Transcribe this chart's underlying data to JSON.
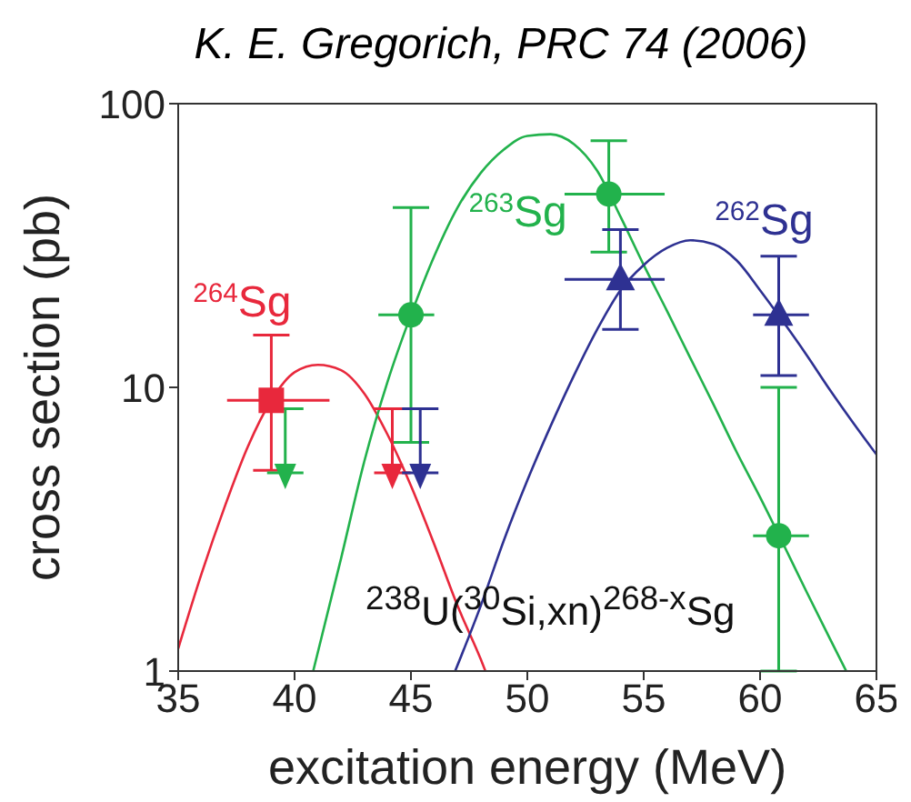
{
  "chart_data": {
    "type": "scatter",
    "title": "K. E. Gregorich, PRC 74 (2006)",
    "xlabel": "excitation energy (MeV)",
    "ylabel": "cross section (pb)",
    "xlim": [
      35,
      65
    ],
    "xticks": [
      35,
      40,
      45,
      50,
      55,
      60,
      65
    ],
    "ylim": [
      1,
      100
    ],
    "yticks": [
      1,
      10,
      100
    ],
    "log": "y",
    "grid": false,
    "legend": false,
    "series": [
      {
        "name": "$^{264}$Sg",
        "marker": "square",
        "color": "#e8283c",
        "x": [
          39
        ],
        "values": [
          9.0
        ],
        "errors": [
          [
            5.1,
            15.3
          ]
        ],
        "xerrors": [
          [
            37.1,
            41.5
          ]
        ]
      },
      {
        "type": "line",
        "marker": "none",
        "color": "#e8283c",
        "x": [
          35,
          36,
          37,
          38,
          39,
          40,
          41,
          42,
          43,
          44,
          45,
          46,
          47,
          48,
          48.2
        ],
        "values": [
          1.2,
          2.2,
          3.8,
          6.2,
          9.0,
          11.3,
          12,
          11.5,
          9.5,
          6.8,
          4.5,
          2.8,
          1.7,
          1.1,
          1
        ]
      },
      {
        "name": "$^{263}$Sg",
        "marker": "circle",
        "color": "#22b24c",
        "x": [
          45,
          53.5,
          60.8
        ],
        "values": [
          18,
          48,
          3
        ],
        "errors": [
          [
            6.4,
            43
          ],
          [
            30,
            74
          ],
          [
            1,
            10
          ]
        ],
        "xerrors": [
          [
            43.6,
            46.0
          ],
          [
            51.6,
            55.9
          ],
          [
            59.7,
            62.1
          ]
        ]
      },
      {
        "type": "line",
        "marker": "none",
        "color": "#22b24c",
        "x": [
          40.8,
          42,
          43,
          44,
          45,
          46,
          47,
          48,
          49,
          50,
          51,
          52,
          53,
          54,
          55,
          56,
          57,
          58,
          59,
          60,
          61,
          62,
          63,
          63.7
        ],
        "values": [
          1,
          2.5,
          5.5,
          10.5,
          18,
          29,
          43,
          57,
          69,
          77,
          78,
          72,
          58,
          40,
          27,
          18.6,
          12.7,
          8.7,
          5.9,
          4.1,
          2.8,
          1.9,
          1.3,
          1
        ]
      },
      {
        "name": "$^{262}$Sg",
        "marker": "triangle",
        "color": "#2e3192",
        "x": [
          54,
          60.8
        ],
        "values": [
          24,
          18
        ],
        "errors": [
          [
            16,
            36
          ],
          [
            11,
            29
          ]
        ],
        "xerrors": [
          [
            51.6,
            55.9
          ],
          [
            59.7,
            62.1
          ]
        ]
      },
      {
        "type": "line",
        "marker": "none",
        "color": "#2e3192",
        "x": [
          46.9,
          48,
          49,
          50,
          51,
          52,
          53,
          54,
          55,
          56,
          57,
          58,
          59,
          60,
          61,
          62,
          63,
          64,
          65
        ],
        "values": [
          1,
          1.7,
          2.9,
          4.7,
          7.3,
          11,
          16,
          22,
          27,
          31,
          33,
          32,
          28,
          22,
          17,
          13,
          9.8,
          7.5,
          5.8
        ]
      },
      {
        "marker": "triangle",
        "color": "#22b24c",
        "x": [
          39.6
        ],
        "values": [
          5.0
        ],
        "errors": [
          [
            5.0,
            8.4
          ]
        ]
      },
      {
        "marker": "triangle",
        "color": "#e8283c",
        "x": [
          44.2
        ],
        "values": [
          5.0
        ],
        "errors": [
          [
            5.0,
            8.4
          ]
        ]
      },
      {
        "marker": "triangle",
        "color": "#2e3192",
        "x": [
          45.4
        ],
        "values": [
          5.0
        ],
        "errors": [
          [
            5.0,
            8.4
          ]
        ]
      }
    ],
    "annotations": [
      "$^{238}$U($^{30}$Si,xn)$^{268-x}$Sg"
    ]
  }
}
